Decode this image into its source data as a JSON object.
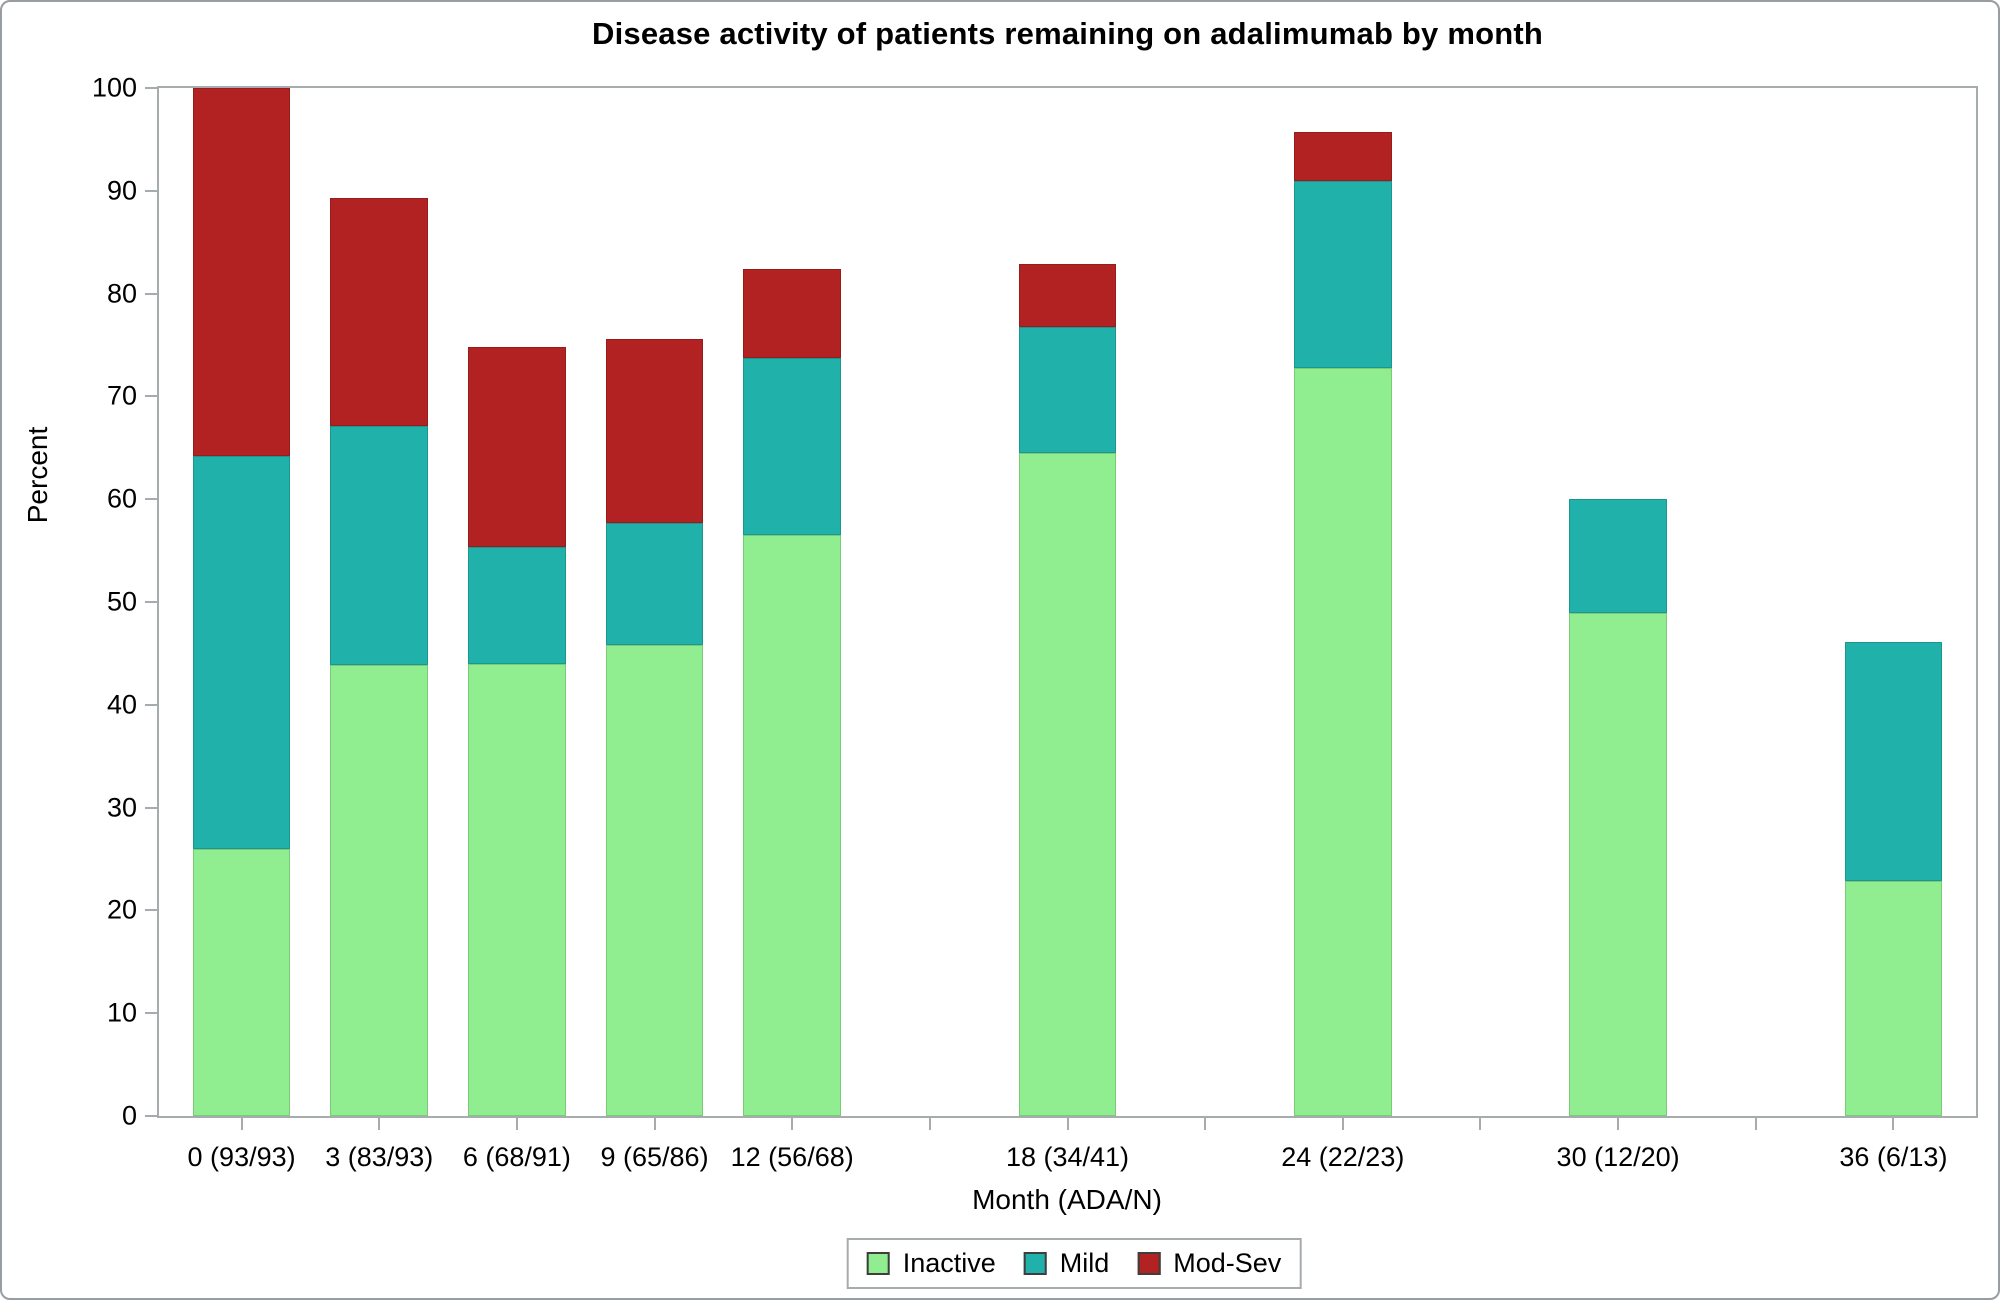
{
  "chart_data": {
    "type": "bar",
    "stacked": true,
    "title": "Disease activity of patients remaining on adalimumab by month",
    "xlabel": "Month (ADA/N)",
    "ylabel": "Percent",
    "ylim": [
      0,
      100
    ],
    "yticks": [
      0,
      10,
      20,
      30,
      40,
      50,
      60,
      70,
      80,
      90,
      100
    ],
    "xlim": [
      -1.8,
      37.8
    ],
    "xticks": [
      0,
      3,
      6,
      9,
      12,
      15,
      18,
      21,
      24,
      27,
      30,
      33,
      36
    ],
    "grid": false,
    "bar_width_months": 2.13,
    "months": [
      0,
      3,
      6,
      9,
      12,
      18,
      24,
      30,
      36
    ],
    "categories": [
      "0 (93/93)",
      "3 (83/93)",
      "6 (68/91)",
      "9 (65/86)",
      "12 (56/68)",
      "18 (34/41)",
      "24 (22/23)",
      "30 (12/20)",
      "36 (6/13)"
    ],
    "series": [
      {
        "name": "Inactive",
        "color": "#90EE90",
        "values": [
          26.0,
          43.9,
          44.0,
          45.8,
          56.5,
          64.5,
          72.8,
          48.9,
          22.9
        ]
      },
      {
        "name": "Mild",
        "color": "#20B2AA",
        "values": [
          38.2,
          23.2,
          11.4,
          11.9,
          17.2,
          12.3,
          18.2,
          11.1,
          23.2
        ]
      },
      {
        "name": "Mod-Sev",
        "color": "#B22222",
        "values": [
          35.8,
          22.2,
          19.4,
          17.9,
          8.7,
          6.1,
          4.7,
          0,
          0
        ]
      }
    ],
    "legend": {
      "position": "bottom",
      "entries": [
        "Inactive",
        "Mild",
        "Mod-Sev"
      ]
    }
  },
  "colors": {
    "frame": "#a6abae",
    "background": "#ffffff",
    "text": "#000000",
    "inactive": "#90EE90",
    "mild": "#20B2AA",
    "mod_sev": "#B22222"
  }
}
